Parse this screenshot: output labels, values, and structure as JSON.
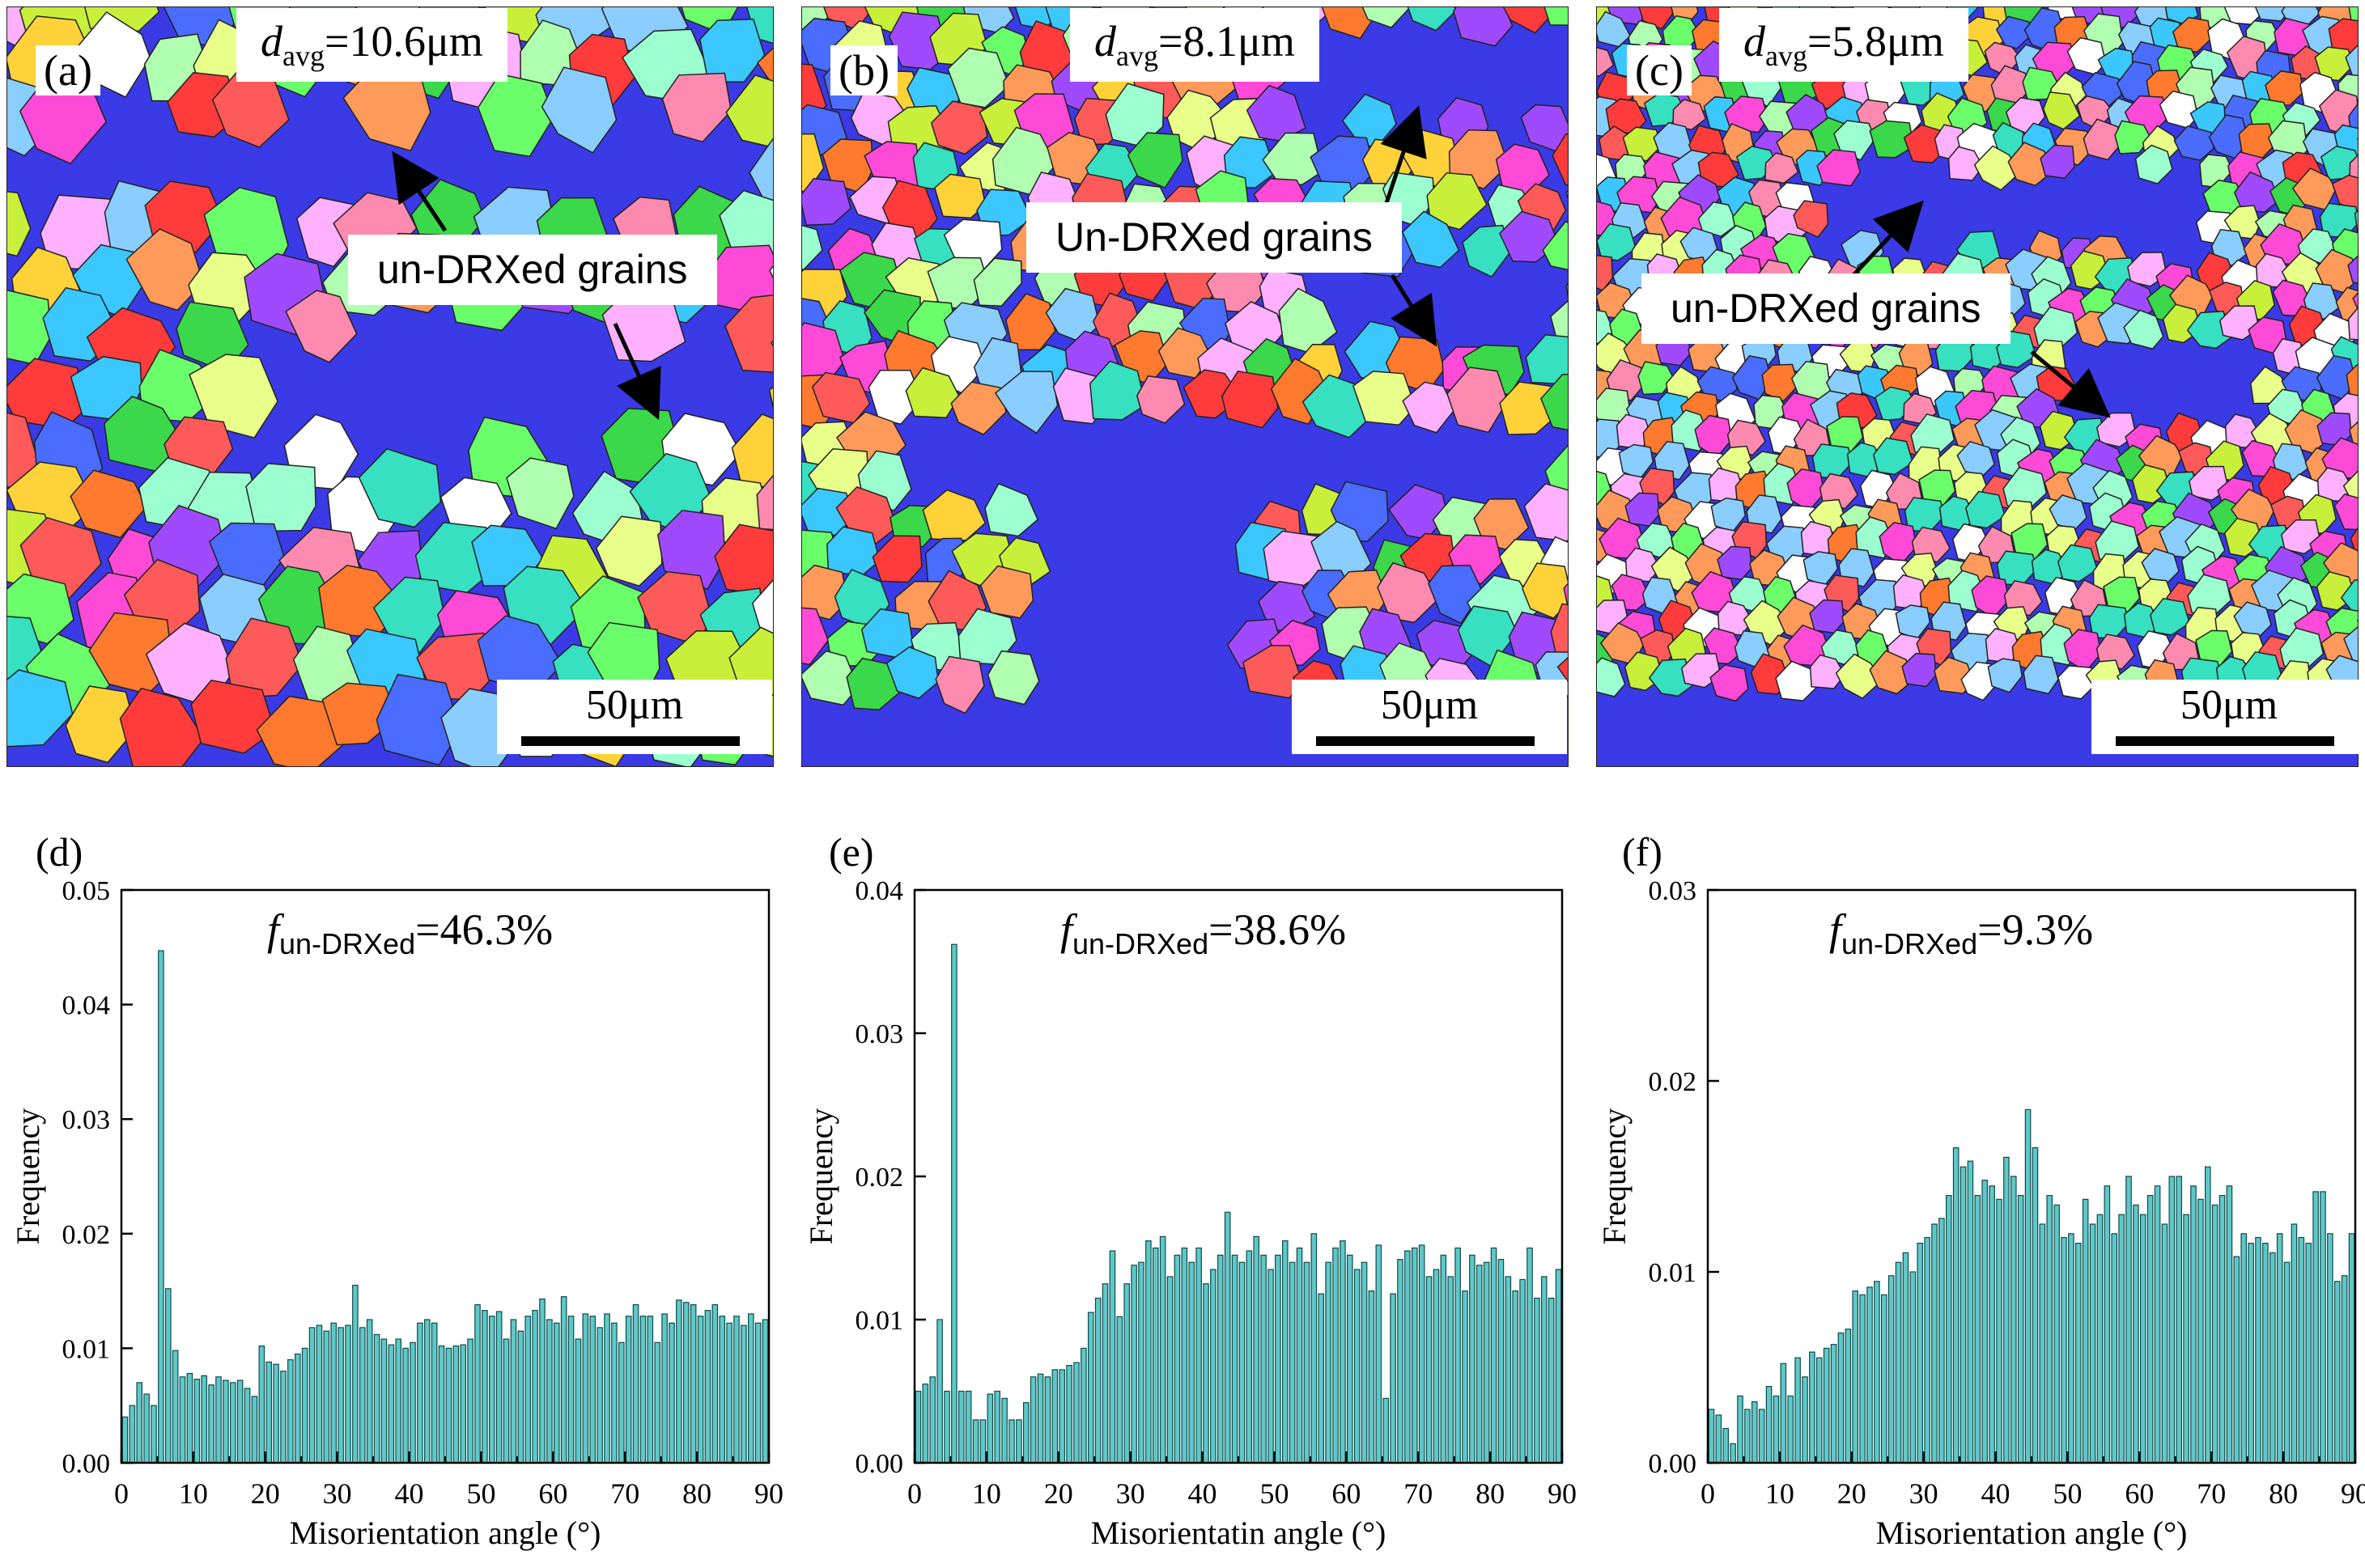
{
  "maps": [
    {
      "letter": "(a)",
      "davg_main": "d",
      "davg_sub": "avg",
      "davg_value": "=10.6μm",
      "callout": "un-DRXed grains",
      "scale": "50μm"
    },
    {
      "letter": "(b)",
      "davg_main": "d",
      "davg_sub": "avg",
      "davg_value": "=8.1μm",
      "callout": "Un-DRXed grains",
      "scale": "50μm"
    },
    {
      "letter": "(c)",
      "davg_main": "d",
      "davg_sub": "avg",
      "davg_value": "=5.8μm",
      "callout": "un-DRXed grains",
      "scale": "50μm"
    }
  ],
  "colors": {
    "bar_fill": "#5ec8c8",
    "bar_stroke": "#0e4a4a",
    "unDRX": "#3a3ae6"
  },
  "chart_data": [
    {
      "type": "bar",
      "panel": "(d)",
      "annotation_main": "f",
      "annotation_sub": "un-DRXed",
      "annotation_value": "=46.3%",
      "xlabel": "Misorientation angle (°)",
      "ylabel": "Frequency",
      "xlim": [
        0,
        90
      ],
      "ylim": [
        0,
        0.05
      ],
      "xticks": [
        0,
        10,
        20,
        30,
        40,
        50,
        60,
        70,
        80,
        90
      ],
      "yticks": [
        "0.00",
        "0.01",
        "0.02",
        "0.03",
        "0.04",
        "0.05"
      ],
      "bin_width": 1,
      "x": [
        0.5,
        1.5,
        2.5,
        3.5,
        4.5,
        5.5,
        6.5,
        7.5,
        8.5,
        9.5,
        10.5,
        11.5,
        12.5,
        13.5,
        14.5,
        15.5,
        16.5,
        17.5,
        18.5,
        19.5,
        20.5,
        21.5,
        22.5,
        23.5,
        24.5,
        25.5,
        26.5,
        27.5,
        28.5,
        29.5,
        30.5,
        31.5,
        32.5,
        33.5,
        34.5,
        35.5,
        36.5,
        37.5,
        38.5,
        39.5,
        40.5,
        41.5,
        42.5,
        43.5,
        44.5,
        45.5,
        46.5,
        47.5,
        48.5,
        49.5,
        50.5,
        51.5,
        52.5,
        53.5,
        54.5,
        55.5,
        56.5,
        57.5,
        58.5,
        59.5,
        60.5,
        61.5,
        62.5,
        63.5,
        64.5,
        65.5,
        66.5,
        67.5,
        68.5,
        69.5,
        70.5,
        71.5,
        72.5,
        73.5,
        74.5,
        75.5,
        76.5,
        77.5,
        78.5,
        79.5,
        80.5,
        81.5,
        82.5,
        83.5,
        84.5,
        85.5,
        86.5,
        87.5,
        88.5,
        89.5
      ],
      "values": [
        0.004,
        0.005,
        0.007,
        0.006,
        0.005,
        0.0447,
        0.0152,
        0.0098,
        0.0075,
        0.0078,
        0.0073,
        0.0076,
        0.0068,
        0.0075,
        0.0072,
        0.007,
        0.0072,
        0.0065,
        0.0058,
        0.0102,
        0.0088,
        0.0086,
        0.008,
        0.009,
        0.0095,
        0.01,
        0.0118,
        0.012,
        0.0115,
        0.0122,
        0.0118,
        0.012,
        0.0155,
        0.0118,
        0.0125,
        0.0112,
        0.0108,
        0.0103,
        0.0108,
        0.01,
        0.0105,
        0.0122,
        0.0125,
        0.0122,
        0.0102,
        0.01,
        0.0102,
        0.0103,
        0.0108,
        0.0138,
        0.0133,
        0.0128,
        0.0132,
        0.0108,
        0.0125,
        0.0115,
        0.0128,
        0.0133,
        0.0143,
        0.0125,
        0.0122,
        0.0145,
        0.0128,
        0.0108,
        0.013,
        0.0128,
        0.0118,
        0.013,
        0.0122,
        0.0105,
        0.0128,
        0.0138,
        0.0128,
        0.0128,
        0.0105,
        0.013,
        0.0122,
        0.0142,
        0.014,
        0.0138,
        0.0128,
        0.0133,
        0.0138,
        0.0128,
        0.0122,
        0.0128,
        0.012,
        0.013,
        0.0122,
        0.0125
      ]
    },
    {
      "type": "bar",
      "panel": "(e)",
      "annotation_main": "f",
      "annotation_sub": "un-DRXed",
      "annotation_value": "=38.6%",
      "xlabel": "Misorientatin angle (°)",
      "ylabel": "Frequency",
      "xlim": [
        0,
        90
      ],
      "ylim": [
        0,
        0.04
      ],
      "xticks": [
        0,
        10,
        20,
        30,
        40,
        50,
        60,
        70,
        80,
        90
      ],
      "yticks": [
        "0.00",
        "0.01",
        "0.02",
        "0.03",
        "0.04"
      ],
      "bin_width": 1,
      "x": [
        0.5,
        1.5,
        2.5,
        3.5,
        4.5,
        5.5,
        6.5,
        7.5,
        8.5,
        9.5,
        10.5,
        11.5,
        12.5,
        13.5,
        14.5,
        15.5,
        16.5,
        17.5,
        18.5,
        19.5,
        20.5,
        21.5,
        22.5,
        23.5,
        24.5,
        25.5,
        26.5,
        27.5,
        28.5,
        29.5,
        30.5,
        31.5,
        32.5,
        33.5,
        34.5,
        35.5,
        36.5,
        37.5,
        38.5,
        39.5,
        40.5,
        41.5,
        42.5,
        43.5,
        44.5,
        45.5,
        46.5,
        47.5,
        48.5,
        49.5,
        50.5,
        51.5,
        52.5,
        53.5,
        54.5,
        55.5,
        56.5,
        57.5,
        58.5,
        59.5,
        60.5,
        61.5,
        62.5,
        63.5,
        64.5,
        65.5,
        66.5,
        67.5,
        68.5,
        69.5,
        70.5,
        71.5,
        72.5,
        73.5,
        74.5,
        75.5,
        76.5,
        77.5,
        78.5,
        79.5,
        80.5,
        81.5,
        82.5,
        83.5,
        84.5,
        85.5,
        86.5,
        87.5,
        88.5,
        89.5
      ],
      "values": [
        0.005,
        0.0055,
        0.006,
        0.01,
        0.005,
        0.0362,
        0.005,
        0.005,
        0.003,
        0.003,
        0.0048,
        0.005,
        0.0045,
        0.003,
        0.003,
        0.0042,
        0.006,
        0.0062,
        0.006,
        0.0065,
        0.0065,
        0.0068,
        0.007,
        0.008,
        0.0105,
        0.0115,
        0.0125,
        0.0148,
        0.0102,
        0.0125,
        0.0138,
        0.014,
        0.0155,
        0.015,
        0.0158,
        0.013,
        0.0145,
        0.015,
        0.014,
        0.015,
        0.0125,
        0.0135,
        0.0145,
        0.0175,
        0.0145,
        0.014,
        0.0148,
        0.0158,
        0.0145,
        0.0135,
        0.0145,
        0.0155,
        0.014,
        0.015,
        0.014,
        0.016,
        0.0118,
        0.014,
        0.015,
        0.0155,
        0.0145,
        0.0135,
        0.014,
        0.012,
        0.0152,
        0.0045,
        0.0118,
        0.0142,
        0.0148,
        0.015,
        0.0152,
        0.013,
        0.0135,
        0.0145,
        0.013,
        0.015,
        0.012,
        0.0145,
        0.0138,
        0.014,
        0.015,
        0.0142,
        0.013,
        0.012,
        0.0128,
        0.015,
        0.0115,
        0.013,
        0.0115,
        0.0135
      ]
    },
    {
      "type": "bar",
      "panel": "(f)",
      "annotation_main": "f",
      "annotation_sub": "un-DRXed",
      "annotation_value": "=9.3%",
      "xlabel": "Misorientation angle (°)",
      "ylabel": "Frequency",
      "xlim": [
        0,
        90
      ],
      "ylim": [
        0,
        0.03
      ],
      "xticks": [
        0,
        10,
        20,
        30,
        40,
        50,
        60,
        70,
        80,
        90
      ],
      "yticks": [
        "0.00",
        "0.01",
        "0.02",
        "0.03"
      ],
      "bin_width": 1,
      "x": [
        0.5,
        1.5,
        2.5,
        3.5,
        4.5,
        5.5,
        6.5,
        7.5,
        8.5,
        9.5,
        10.5,
        11.5,
        12.5,
        13.5,
        14.5,
        15.5,
        16.5,
        17.5,
        18.5,
        19.5,
        20.5,
        21.5,
        22.5,
        23.5,
        24.5,
        25.5,
        26.5,
        27.5,
        28.5,
        29.5,
        30.5,
        31.5,
        32.5,
        33.5,
        34.5,
        35.5,
        36.5,
        37.5,
        38.5,
        39.5,
        40.5,
        41.5,
        42.5,
        43.5,
        44.5,
        45.5,
        46.5,
        47.5,
        48.5,
        49.5,
        50.5,
        51.5,
        52.5,
        53.5,
        54.5,
        55.5,
        56.5,
        57.5,
        58.5,
        59.5,
        60.5,
        61.5,
        62.5,
        63.5,
        64.5,
        65.5,
        66.5,
        67.5,
        68.5,
        69.5,
        70.5,
        71.5,
        72.5,
        73.5,
        74.5,
        75.5,
        76.5,
        77.5,
        78.5,
        79.5,
        80.5,
        81.5,
        82.5,
        83.5,
        84.5,
        85.5,
        86.5,
        87.5,
        88.5,
        89.5
      ],
      "values": [
        0.0028,
        0.0025,
        0.0018,
        0.001,
        0.0035,
        0.0028,
        0.0032,
        0.0028,
        0.004,
        0.0035,
        0.0052,
        0.0035,
        0.0055,
        0.0045,
        0.0058,
        0.0055,
        0.006,
        0.0062,
        0.0068,
        0.007,
        0.009,
        0.0088,
        0.0092,
        0.0095,
        0.0088,
        0.0098,
        0.0105,
        0.011,
        0.01,
        0.0115,
        0.0118,
        0.0125,
        0.0128,
        0.014,
        0.0165,
        0.0155,
        0.0158,
        0.014,
        0.0148,
        0.0145,
        0.0138,
        0.016,
        0.015,
        0.014,
        0.0185,
        0.0165,
        0.0125,
        0.014,
        0.0135,
        0.0118,
        0.012,
        0.0115,
        0.0138,
        0.0125,
        0.013,
        0.0145,
        0.012,
        0.013,
        0.015,
        0.0135,
        0.013,
        0.014,
        0.0145,
        0.0125,
        0.015,
        0.015,
        0.013,
        0.0145,
        0.0138,
        0.0155,
        0.0135,
        0.014,
        0.0145,
        0.0108,
        0.012,
        0.0115,
        0.0118,
        0.0115,
        0.011,
        0.012,
        0.0105,
        0.0125,
        0.0118,
        0.0115,
        0.0142,
        0.0142,
        0.012,
        0.0095,
        0.0098,
        0.012
      ]
    }
  ]
}
